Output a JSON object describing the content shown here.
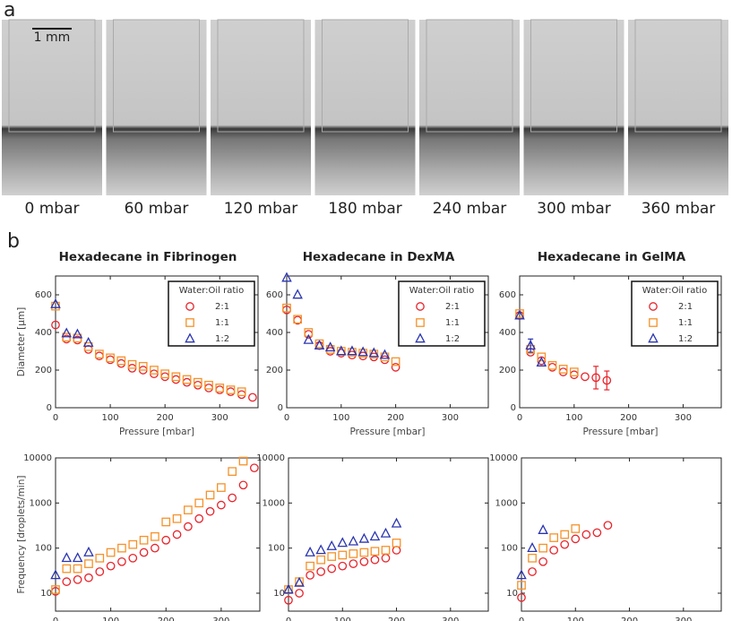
{
  "panel_a": {
    "label": "a",
    "scale_bar": "1 mm",
    "captions": [
      "0 mbar",
      "60 mbar",
      "120 mbar",
      "180 mbar",
      "240 mbar",
      "300 mbar",
      "360 mbar"
    ]
  },
  "panel_b_label": "b",
  "chart_data": [
    {
      "type": "scatter",
      "title": "Hexadecane in Fibrinogen",
      "xlabel": "Pressure [mbar]",
      "ylabel": "Diameter [µm]",
      "xlim": [
        0,
        370
      ],
      "xticks": [
        0,
        100,
        200,
        300
      ],
      "ylim": [
        0,
        700
      ],
      "yticks": [
        0,
        200,
        400,
        600
      ],
      "legend_title": "Water:Oil ratio",
      "legend": "upper right",
      "series": [
        {
          "name": "2:1",
          "color": "#e8232a",
          "marker": "circle",
          "x": [
            0,
            20,
            40,
            60,
            80,
            100,
            120,
            140,
            160,
            180,
            200,
            220,
            240,
            260,
            280,
            300,
            320,
            340,
            360
          ],
          "values": [
            440,
            365,
            360,
            310,
            275,
            255,
            235,
            210,
            200,
            180,
            165,
            150,
            135,
            120,
            105,
            95,
            85,
            70,
            55
          ]
        },
        {
          "name": "1:1",
          "color": "#f5922a",
          "marker": "square",
          "x": [
            0,
            20,
            40,
            60,
            80,
            100,
            120,
            140,
            160,
            180,
            200,
            220,
            240,
            260,
            280,
            300,
            320,
            340
          ],
          "values": [
            540,
            375,
            370,
            325,
            285,
            265,
            250,
            230,
            220,
            200,
            180,
            165,
            150,
            135,
            120,
            105,
            95,
            85
          ]
        },
        {
          "name": "1:2",
          "color": "#2a35b0",
          "marker": "triangle",
          "x": [
            0,
            20,
            40,
            60
          ],
          "values": [
            550,
            395,
            390,
            345
          ]
        }
      ]
    },
    {
      "type": "scatter",
      "title": "Hexadecane in DexMA",
      "xlabel": "Pressure [mbar]",
      "xlim": [
        0,
        370
      ],
      "xticks": [
        0,
        100,
        200,
        300
      ],
      "ylim": [
        0,
        700
      ],
      "yticks": [
        0,
        200,
        400,
        600
      ],
      "legend_title": "Water:Oil ratio",
      "legend": "upper right",
      "series": [
        {
          "name": "2:1",
          "color": "#e8232a",
          "marker": "circle",
          "x": [
            0,
            20,
            40,
            60,
            80,
            100,
            120,
            140,
            160,
            180,
            200
          ],
          "values": [
            520,
            465,
            390,
            330,
            300,
            290,
            280,
            275,
            270,
            255,
            215
          ]
        },
        {
          "name": "1:1",
          "color": "#f5922a",
          "marker": "square",
          "x": [
            0,
            20,
            40,
            60,
            80,
            100,
            120,
            140,
            160,
            180,
            200
          ],
          "values": [
            530,
            470,
            400,
            340,
            310,
            300,
            295,
            290,
            285,
            270,
            245
          ]
        },
        {
          "name": "1:2",
          "color": "#2a35b0",
          "marker": "triangle",
          "x": [
            0,
            20,
            40,
            60,
            80,
            100,
            120,
            140,
            160,
            180
          ],
          "values": [
            690,
            600,
            360,
            330,
            320,
            300,
            300,
            295,
            290,
            280
          ]
        }
      ]
    },
    {
      "type": "scatter",
      "title": "Hexadecane in GelMA",
      "xlabel": "Pressure [mbar]",
      "xlim": [
        0,
        370
      ],
      "xticks": [
        0,
        100,
        200,
        300
      ],
      "ylim": [
        0,
        700
      ],
      "yticks": [
        0,
        200,
        400,
        600
      ],
      "legend_title": "Water:Oil ratio",
      "legend": "upper right",
      "series": [
        {
          "name": "2:1",
          "color": "#e8232a",
          "marker": "circle",
          "x": [
            0,
            20,
            40,
            60,
            80,
            100,
            120,
            140,
            160
          ],
          "values": [
            490,
            295,
            250,
            215,
            190,
            175,
            165,
            160,
            145
          ],
          "errors": [
            null,
            null,
            null,
            null,
            null,
            null,
            null,
            60,
            50
          ]
        },
        {
          "name": "1:1",
          "color": "#f5922a",
          "marker": "square",
          "x": [
            0,
            20,
            40,
            60,
            80,
            100
          ],
          "values": [
            500,
            310,
            270,
            225,
            205,
            190
          ]
        },
        {
          "name": "1:2",
          "color": "#2a35b0",
          "marker": "triangle",
          "x": [
            0,
            20,
            40
          ],
          "values": [
            490,
            330,
            240
          ],
          "errors": [
            null,
            35,
            null
          ]
        }
      ]
    },
    {
      "type": "scatter",
      "xlabel": "Pressure [mbar]",
      "ylabel": "Frequency [droplets/min]",
      "log_y": true,
      "xlim": [
        0,
        370
      ],
      "xticks": [
        0,
        100,
        200,
        300
      ],
      "ylim": [
        4,
        10000
      ],
      "yticks": [
        10,
        100,
        1000,
        10000
      ],
      "series": [
        {
          "color": "#e8232a",
          "marker": "circle",
          "x": [
            0,
            20,
            40,
            60,
            80,
            100,
            120,
            140,
            160,
            180,
            200,
            220,
            240,
            260,
            280,
            300,
            320,
            340,
            360
          ],
          "values": [
            11,
            18,
            20,
            22,
            30,
            40,
            50,
            60,
            80,
            100,
            150,
            200,
            300,
            450,
            650,
            900,
            1300,
            2500,
            6000
          ]
        },
        {
          "color": "#f5922a",
          "marker": "square",
          "x": [
            0,
            20,
            40,
            60,
            80,
            100,
            120,
            140,
            160,
            180,
            200,
            220,
            240,
            260,
            280,
            300,
            320,
            340
          ],
          "values": [
            12,
            35,
            35,
            45,
            60,
            80,
            100,
            120,
            150,
            180,
            380,
            450,
            700,
            1000,
            1500,
            2200,
            5000,
            8500
          ]
        },
        {
          "color": "#2a35b0",
          "marker": "triangle",
          "x": [
            0,
            20,
            40,
            60
          ],
          "values": [
            25,
            60,
            60,
            80
          ]
        }
      ]
    },
    {
      "type": "scatter",
      "xlabel": "Pressure [mbar]",
      "log_y": true,
      "xlim": [
        0,
        370
      ],
      "xticks": [
        0,
        100,
        200,
        300
      ],
      "ylim": [
        4,
        10000
      ],
      "yticks": [
        10,
        100,
        1000,
        10000
      ],
      "series": [
        {
          "color": "#e8232a",
          "marker": "circle",
          "x": [
            0,
            20,
            40,
            60,
            80,
            100,
            120,
            140,
            160,
            180,
            200
          ],
          "values": [
            7,
            10,
            25,
            30,
            35,
            40,
            45,
            50,
            55,
            60,
            90
          ]
        },
        {
          "color": "#f5922a",
          "marker": "square",
          "x": [
            0,
            20,
            40,
            60,
            80,
            100,
            120,
            140,
            160,
            180,
            200
          ],
          "values": [
            12,
            18,
            40,
            55,
            65,
            70,
            75,
            80,
            85,
            90,
            130
          ]
        },
        {
          "color": "#2a35b0",
          "marker": "triangle",
          "x": [
            0,
            20,
            40,
            60,
            80,
            100,
            120,
            140,
            160,
            180,
            200
          ],
          "values": [
            12,
            17,
            80,
            90,
            110,
            130,
            140,
            160,
            180,
            210,
            350
          ]
        }
      ]
    },
    {
      "type": "scatter",
      "xlabel": "Pressure [mbar]",
      "log_y": true,
      "xlim": [
        0,
        370
      ],
      "xticks": [
        0,
        100,
        200,
        300
      ],
      "ylim": [
        4,
        10000
      ],
      "yticks": [
        10,
        100,
        1000,
        10000
      ],
      "series": [
        {
          "color": "#e8232a",
          "marker": "circle",
          "x": [
            0,
            20,
            40,
            60,
            80,
            100,
            120,
            140,
            160
          ],
          "values": [
            8,
            30,
            50,
            90,
            120,
            160,
            200,
            220,
            320
          ]
        },
        {
          "color": "#f5922a",
          "marker": "square",
          "x": [
            0,
            20,
            40,
            60,
            80,
            100
          ],
          "values": [
            15,
            60,
            100,
            170,
            200,
            270
          ]
        },
        {
          "color": "#2a35b0",
          "marker": "triangle",
          "x": [
            0,
            20,
            40
          ],
          "values": [
            25,
            100,
            250
          ]
        }
      ]
    }
  ]
}
